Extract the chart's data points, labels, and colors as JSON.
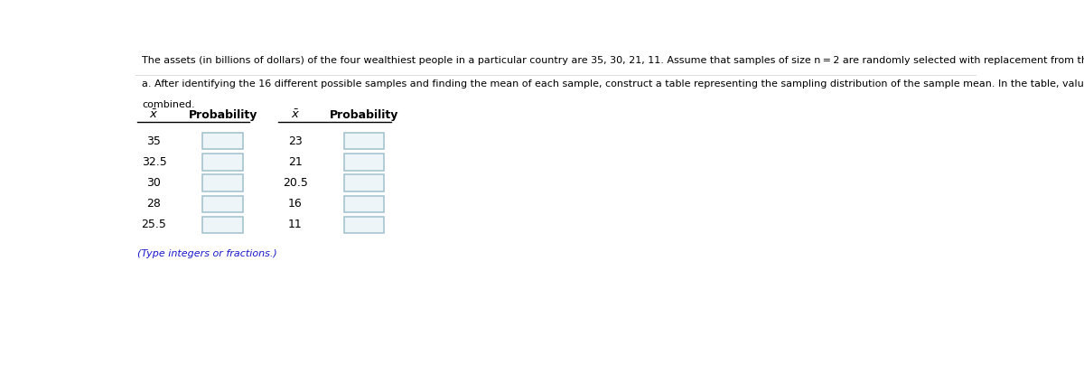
{
  "title_text": "The assets (in billions of dollars) of the four wealthiest people in a particular country are 35, 30, 21, 11. Assume that samples of size n = 2 are randomly selected with replacement from this population of four values.",
  "subtitle_line1": "a. After identifying the 16 different possible samples and finding the mean of each sample, construct a table representing the sampling distribution of the sample mean. In the table, values of the sample mean that are the same have been",
  "subtitle_line2": "combined.",
  "note_text": "(Type integers or fractions.)",
  "col1_xbar": [
    "35",
    "32.5",
    "30",
    "28",
    "25.5"
  ],
  "col2_xbar": [
    "23",
    "21",
    "20.5",
    "16",
    "11"
  ],
  "col_header_x": "$\\bar{x}$",
  "col_header_p": "Probability",
  "bg_color": "#ffffff",
  "text_color": "#000000",
  "note_color": "#1a1acc",
  "title_fontsize": 8.0,
  "subtitle_fontsize": 8.0,
  "table_fontsize": 9.0,
  "header_fontsize": 9.0,
  "box_edge_color": "#a0c0cc",
  "box_fill_color": "#eef5f8",
  "divider_color": "#dddddd",
  "header_line_color": "#000000"
}
